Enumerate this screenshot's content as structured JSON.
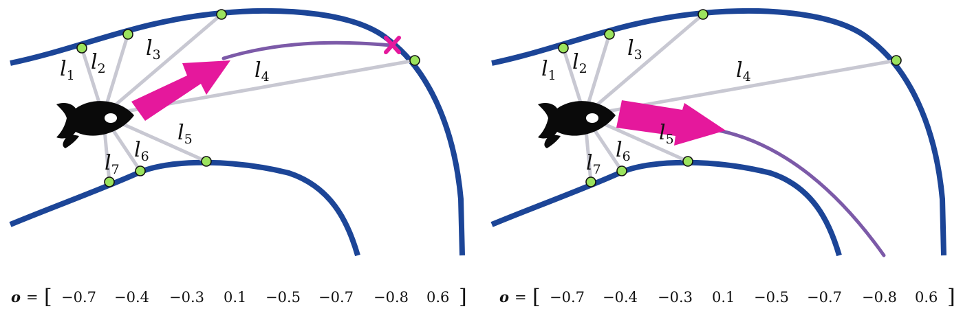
{
  "panels": [
    {
      "id": "left",
      "outcome": "crash",
      "ray_labels": [
        {
          "name": "l",
          "sub": "1"
        },
        {
          "name": "l",
          "sub": "2"
        },
        {
          "name": "l",
          "sub": "3"
        },
        {
          "name": "l",
          "sub": "4"
        },
        {
          "name": "l",
          "sub": "5"
        },
        {
          "name": "l",
          "sub": "6"
        },
        {
          "name": "l",
          "sub": "7"
        }
      ],
      "observation": {
        "symbol": "o",
        "equals": "=",
        "open_bracket": "[",
        "close_bracket": "]",
        "values": [
          "−0.7",
          "−0.4",
          "−0.3",
          "0.1",
          "−0.5",
          "−0.7",
          "−0.8",
          "0.6"
        ]
      }
    },
    {
      "id": "right",
      "outcome": "safe",
      "ray_labels": [
        {
          "name": "l",
          "sub": "1"
        },
        {
          "name": "l",
          "sub": "2"
        },
        {
          "name": "l",
          "sub": "3"
        },
        {
          "name": "l",
          "sub": "4"
        },
        {
          "name": "l",
          "sub": "5"
        },
        {
          "name": "l",
          "sub": "6"
        },
        {
          "name": "l",
          "sub": "7"
        }
      ],
      "observation": {
        "symbol": "o",
        "equals": "=",
        "open_bracket": "[",
        "close_bracket": "]",
        "values": [
          "−0.7",
          "−0.4",
          "−0.3",
          "0.1",
          "−0.5",
          "−0.7",
          "−0.8",
          "0.6"
        ]
      }
    }
  ],
  "colors": {
    "track": "#1c4597",
    "ray": "#c8c8d2",
    "sensor_point": "#9be35e",
    "action_arrow": "#e5189c",
    "trajectory": "#7c5aa8",
    "agent": "#0a0a0a"
  },
  "icons": [
    "fish-agent-icon",
    "crash-cross-icon"
  ]
}
